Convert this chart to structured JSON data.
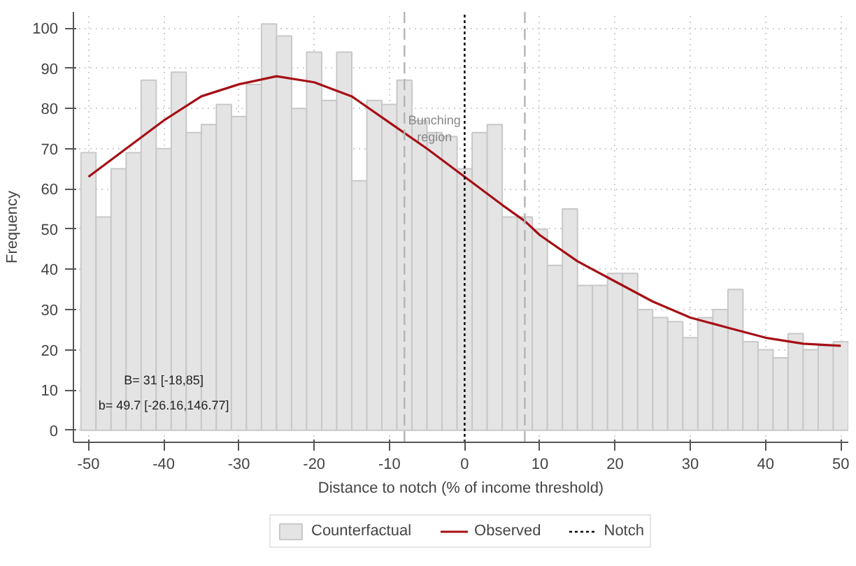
{
  "chart_data": {
    "type": "histogram",
    "xlabel": "Distance to notch (% of income threshold)",
    "ylabel": "Frequency",
    "bins": [
      -51,
      -49,
      -47,
      -45,
      -43,
      -41,
      -39,
      -37,
      -35,
      -33,
      -31,
      -29,
      -27,
      -25,
      -23,
      -21,
      -19,
      -17,
      -15,
      -13,
      -11,
      -9,
      -7,
      -5,
      -3,
      -1,
      1,
      3,
      5,
      7,
      9,
      11,
      13,
      15,
      17,
      19,
      21,
      23,
      25,
      27,
      29,
      31,
      33,
      35,
      37,
      39,
      41,
      43,
      45,
      47,
      49,
      51
    ],
    "series": [
      {
        "name": "Counterfactual",
        "color": "#e4e4e4",
        "values": [
          69,
          53,
          65,
          69,
          87,
          70,
          89,
          74,
          76,
          81,
          78,
          86,
          101,
          98,
          80,
          94,
          82,
          94,
          62,
          82,
          81,
          87,
          77,
          74,
          73,
          65,
          74,
          76,
          53,
          53,
          50,
          41,
          55,
          36,
          36,
          39,
          39,
          30,
          28,
          27,
          23,
          28,
          30,
          35,
          22,
          20,
          18,
          24,
          20,
          21,
          22
        ]
      },
      {
        "name": "Observed",
        "type": "line",
        "color": "#a50f15",
        "x": [
          -50,
          -45,
          -40,
          -35,
          -30,
          -25,
          -20,
          -15,
          -10,
          -5,
          0,
          5,
          8,
          10,
          15,
          20,
          25,
          30,
          35,
          40,
          45,
          50
        ],
        "values": [
          63,
          70,
          77,
          83,
          86,
          88,
          86.5,
          83,
          76.5,
          70,
          63,
          56,
          52,
          48.5,
          42,
          37,
          32,
          28,
          25.5,
          23,
          21.5,
          21
        ]
      }
    ],
    "ref_lines": [
      {
        "axis": "x",
        "value": 0,
        "label": "Notch",
        "color": "#000000",
        "line_style": "dotted"
      },
      {
        "axis": "x",
        "value": -8,
        "label": null,
        "color": "#b4b4b4",
        "line_style": "dashed"
      },
      {
        "axis": "x",
        "value": 8,
        "label": null,
        "color": "#b4b4b4",
        "line_style": "dashed"
      }
    ],
    "annotations": [
      {
        "text": "Bunching\nregion",
        "x": -4,
        "y": 75
      },
      "B= 31 [-18,85]",
      "b= 49.7 [-26.16,146.77]"
    ],
    "xlim": [
      -52,
      51
    ],
    "ylim": [
      -3,
      104
    ],
    "xticks": [
      -50,
      -40,
      -30,
      -20,
      -10,
      0,
      10,
      20,
      30,
      40,
      50
    ],
    "yticks": [
      0,
      10,
      20,
      30,
      40,
      50,
      60,
      70,
      80,
      90,
      100
    ],
    "grid": true,
    "legend": "bottom"
  }
}
